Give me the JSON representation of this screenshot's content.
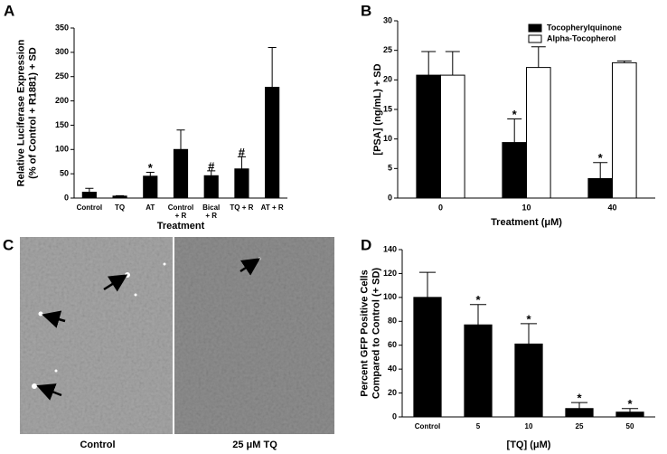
{
  "figure": {
    "panels": [
      "A",
      "B",
      "C",
      "D"
    ],
    "image_captions": [
      "Control",
      "25 μM TQ"
    ]
  },
  "chart_data": [
    {
      "type": "bar",
      "categories": [
        "Control",
        "TQ",
        "AT",
        "Control\n+ R",
        "Bical\n+ R",
        "TQ + R",
        "AT + R"
      ],
      "values": [
        12,
        4,
        45,
        100,
        46,
        60,
        228
      ],
      "errors": [
        8,
        1,
        8,
        40,
        10,
        25,
        82
      ],
      "annotations": [
        null,
        null,
        "*",
        null,
        "#",
        "#",
        null
      ],
      "color": "#000000",
      "ylabel": [
        "Relative Luciferase Expression",
        "(% of Control + R1881) + SD"
      ],
      "xlabel": "Treatment",
      "ylim": [
        0,
        350
      ],
      "yticks": [
        0,
        50,
        100,
        150,
        200,
        250,
        300,
        350
      ]
    },
    {
      "type": "grouped_bar",
      "categories": [
        "0",
        "10",
        "40"
      ],
      "series": [
        {
          "name": "Tocopherylquinone",
          "color": "#000000",
          "values": [
            20.8,
            9.4,
            3.3
          ],
          "errors": [
            4,
            4,
            2.7
          ],
          "annotations": [
            null,
            "*",
            "*"
          ]
        },
        {
          "name": "Alpha-Tocopherol",
          "color": "#ffffff",
          "values": [
            20.8,
            22.1,
            22.9
          ],
          "errors": [
            4,
            3.5,
            0.3
          ],
          "annotations": [
            null,
            null,
            null
          ]
        }
      ],
      "ylabel": [
        "[PSA] (ng/mL) + SD"
      ],
      "xlabel": "Treatment (μM)",
      "legend": "top-right",
      "ylim": [
        0,
        30
      ],
      "yticks": [
        0,
        5,
        10,
        15,
        20,
        25,
        30
      ]
    },
    {
      "type": "bar",
      "categories": [
        "Control",
        "5",
        "10",
        "25",
        "50"
      ],
      "values": [
        100,
        77,
        61,
        7,
        4
      ],
      "errors": [
        21,
        17,
        17,
        5,
        3
      ],
      "annotations": [
        null,
        "*",
        "*",
        "*",
        "*"
      ],
      "color": "#000000",
      "ylabel": [
        "Percent GFP Positive Cells",
        "Compared to Control (+ SD)"
      ],
      "xlabel": "[TQ] (μM)",
      "ylim": [
        0,
        140
      ],
      "yticks": [
        0,
        20,
        40,
        60,
        80,
        100,
        120,
        140
      ]
    }
  ]
}
